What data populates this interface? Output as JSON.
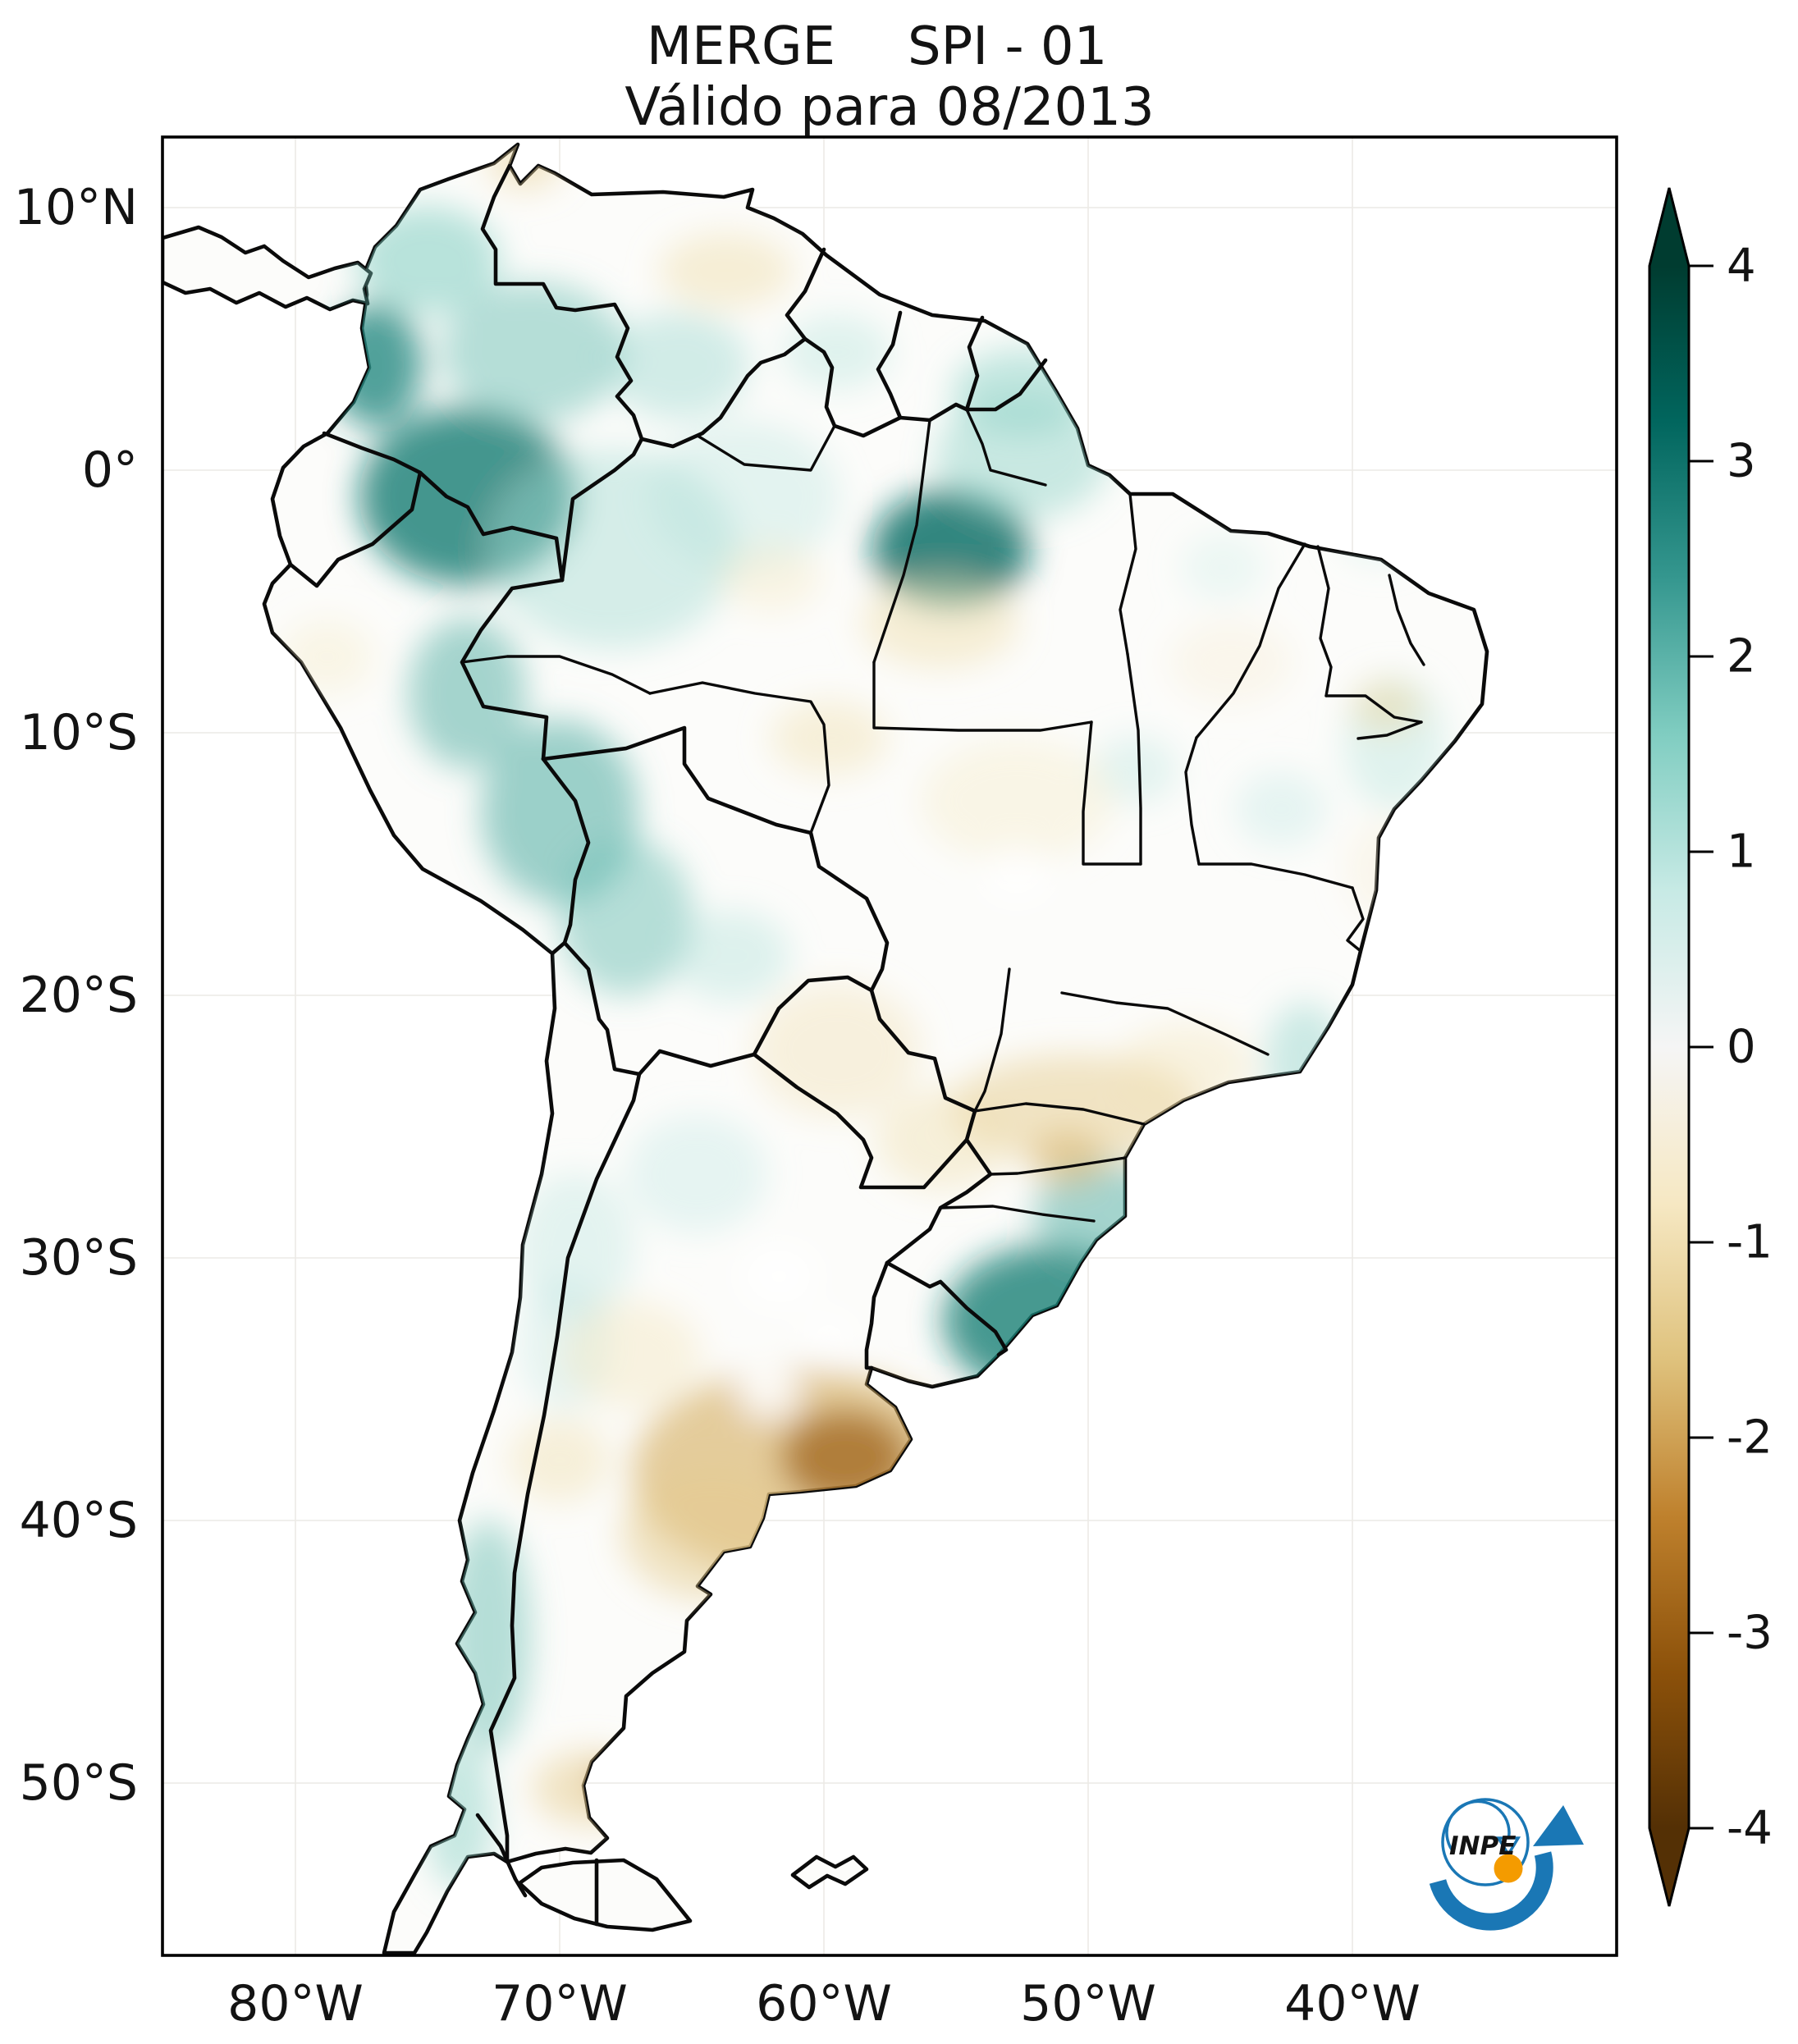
{
  "figure": {
    "title_left": "MERGE",
    "title_right": "SPI - 01",
    "subtitle": "Válido para 08/2013"
  },
  "map": {
    "lat_ticks": [
      {
        "label": "10°N",
        "lat": 10
      },
      {
        "label": "0°",
        "lat": 0
      },
      {
        "label": "10°S",
        "lat": -10
      },
      {
        "label": "20°S",
        "lat": -20
      },
      {
        "label": "30°S",
        "lat": -30
      },
      {
        "label": "40°S",
        "lat": -40
      },
      {
        "label": "50°S",
        "lat": -50
      }
    ],
    "lon_ticks": [
      {
        "label": "80°W",
        "lon": -80
      },
      {
        "label": "70°W",
        "lon": -70
      },
      {
        "label": "60°W",
        "lon": -60
      },
      {
        "label": "50°W",
        "lon": -50
      },
      {
        "label": "40°W",
        "lon": -40
      }
    ]
  },
  "colorbar": {
    "min": -4,
    "max": 4,
    "tick_values": [
      4,
      3,
      2,
      1,
      0,
      -1,
      -2,
      -3,
      -4
    ],
    "extend": "both",
    "colormap_name": "BrBG",
    "stops": [
      "#543005",
      "#8c510a",
      "#bf812d",
      "#dfc27d",
      "#f6e8c3",
      "#f5f5f5",
      "#c7eae5",
      "#80cdc1",
      "#35978f",
      "#01665e",
      "#003c30"
    ]
  },
  "logo": {
    "text": "INPE",
    "blue": "#1a77b5",
    "orange": "#f49b00"
  },
  "chart_data": {
    "type": "heatmap",
    "title": "MERGE SPI - 01",
    "subtitle": "Válido para 08/2013",
    "variable": "SPI-01 (Standardized Precipitation Index, 1-month) from MERGE precipitation",
    "valid_for": "08/2013",
    "region": "South America",
    "extent": {
      "lon_min": -85,
      "lon_max": -30,
      "lat_min": -56.6,
      "lat_max": 12.7
    },
    "x_axis": {
      "label": "longitude",
      "tick_labels": [
        "80°W",
        "70°W",
        "60°W",
        "50°W",
        "40°W"
      ]
    },
    "y_axis": {
      "label": "latitude",
      "tick_labels": [
        "10°N",
        "0°",
        "10°S",
        "20°S",
        "30°S",
        "40°S",
        "50°S"
      ]
    },
    "colorbar": {
      "range": [
        -4,
        4
      ],
      "tick_step": 1,
      "extend": "both",
      "colormap": "BrBG: brown = dry (negative SPI), white = neutral, teal-green = wet (positive SPI)"
    },
    "grid": false,
    "legend_position": "right-colorbar",
    "anomalies": [
      {
        "region": "Pacific Colombia (Chocó)",
        "spi": 2.5
      },
      {
        "region": "S Colombia / E Ecuador / N Peru (NW Amazon)",
        "spi": 3.0
      },
      {
        "region": "Central Pará, Brazil",
        "spi": 3.0
      },
      {
        "region": "Amapá / Guianas coast",
        "spi": 1.5
      },
      {
        "region": "SE Peru / W Bolivia (Madre de Dios - La Paz)",
        "spi": 2.0
      },
      {
        "region": "Rio Grande do Sul / Santa Catarina, S Brazil",
        "spi": 2.5
      },
      {
        "region": "Rio de Janeiro / Espírito Santo coast",
        "spi": 1.0
      },
      {
        "region": "S Chile Andes (43-48°S)",
        "spi": 1.5
      },
      {
        "region": "NW Argentina Andes",
        "spi": 1.0
      },
      {
        "region": "NE Brazil coast (Pernambuco-Alagoas)",
        "spi": 1.0
      },
      {
        "region": "N Venezuela (Guajira / Falcón)",
        "spi": -1.0
      },
      {
        "region": "S Pará / N Mato Grosso",
        "spi": -1.0
      },
      {
        "region": "São Paulo / Paraná interior",
        "spi": -1.5
      },
      {
        "region": "Pampas: Buenos Aires / La Pampa, Argentina",
        "spi": -2.5
      },
      {
        "region": "C Argentina core (~37°S 60°W)",
        "spi": -3.0
      },
      {
        "region": "Gran Chaco (Bolivia / Paraguay)",
        "spi": -1.0
      },
      {
        "region": "S Patagonia (Santa Cruz)",
        "spi": -1.5
      },
      {
        "region": "Interior NE Brazil / C Brazil plateau",
        "spi": 0.0
      }
    ],
    "field_blobs": [
      {
        "lon": -77.0,
        "lat": 4.0,
        "rx": 58,
        "ry": 75,
        "spi": 2.6,
        "op": 0.8
      },
      {
        "lon": -75.0,
        "lat": 8.0,
        "rx": 88,
        "ry": 66,
        "spi": 1.6,
        "op": 0.55
      },
      {
        "lon": -73.5,
        "lat": -1.0,
        "rx": 132,
        "ry": 108,
        "spi": 2.9,
        "op": 0.78
      },
      {
        "lon": -71.0,
        "lat": 4.5,
        "rx": 112,
        "ry": 86,
        "spi": 1.8,
        "op": 0.5
      },
      {
        "lon": -68.0,
        "lat": -3.0,
        "rx": 152,
        "ry": 122,
        "spi": 1.2,
        "op": 0.45
      },
      {
        "lon": -65.5,
        "lat": 4.0,
        "rx": 86,
        "ry": 66,
        "spi": 1.4,
        "op": 0.4
      },
      {
        "lon": -59.5,
        "lat": 4.5,
        "rx": 66,
        "ry": 46,
        "spi": 1.0,
        "op": 0.4
      },
      {
        "lon": -52.5,
        "lat": 3.0,
        "rx": 86,
        "ry": 52,
        "spi": 1.5,
        "op": 0.5
      },
      {
        "lon": -55.2,
        "lat": -3.0,
        "rx": 96,
        "ry": 72,
        "spi": 3.0,
        "op": 0.85
      },
      {
        "lon": -52.5,
        "lat": 0.5,
        "rx": 106,
        "ry": 76,
        "spi": 1.5,
        "op": 0.45
      },
      {
        "lon": -63.0,
        "lat": -1.0,
        "rx": 116,
        "ry": 92,
        "spi": 1.0,
        "op": 0.35
      },
      {
        "lon": -73.5,
        "lat": -8.5,
        "rx": 72,
        "ry": 92,
        "spi": 2.0,
        "op": 0.55
      },
      {
        "lon": -70.0,
        "lat": -13.0,
        "rx": 96,
        "ry": 112,
        "spi": 2.0,
        "op": 0.6
      },
      {
        "lon": -67.5,
        "lat": -17.0,
        "rx": 82,
        "ry": 96,
        "spi": 1.8,
        "op": 0.5
      },
      {
        "lon": -63.5,
        "lat": -18.5,
        "rx": 72,
        "ry": 56,
        "spi": 1.2,
        "op": 0.35
      },
      {
        "lon": -51.4,
        "lat": -32.4,
        "rx": 132,
        "ry": 92,
        "spi": 2.8,
        "op": 0.8
      },
      {
        "lon": -49.4,
        "lat": -28.3,
        "rx": 86,
        "ry": 62,
        "spi": 2.0,
        "op": 0.55
      },
      {
        "lon": -41.8,
        "lat": -22.5,
        "rx": 48,
        "ry": 72,
        "spi": 1.3,
        "op": 0.5
      },
      {
        "lon": -38.4,
        "lat": -10.4,
        "rx": 62,
        "ry": 82,
        "spi": 1.0,
        "op": 0.4
      },
      {
        "lon": -42.7,
        "lat": -12.9,
        "rx": 56,
        "ry": 46,
        "spi": 0.9,
        "op": 0.35
      },
      {
        "lon": -48.2,
        "lat": -11.4,
        "rx": 52,
        "ry": 42,
        "spi": 1.0,
        "op": 0.35
      },
      {
        "lon": -44.9,
        "lat": -3.7,
        "rx": 52,
        "ry": 42,
        "spi": 0.8,
        "op": 0.3
      },
      {
        "lon": -38.9,
        "lat": -2.3,
        "rx": 56,
        "ry": 40,
        "spi": 0.8,
        "op": 0.35
      },
      {
        "lon": -72.7,
        "lat": -44.4,
        "rx": 52,
        "ry": 142,
        "spi": 1.8,
        "op": 0.5
      },
      {
        "lon": -73.8,
        "lat": -51.2,
        "rx": 42,
        "ry": 92,
        "spi": 1.4,
        "op": 0.5
      },
      {
        "lon": -69.4,
        "lat": -29.6,
        "rx": 72,
        "ry": 92,
        "spi": 1.0,
        "op": 0.35
      },
      {
        "lon": -69.8,
        "lat": -33.3,
        "rx": 56,
        "ry": 82,
        "spi": 0.9,
        "op": 0.35
      },
      {
        "lon": -64.8,
        "lat": -26.8,
        "rx": 86,
        "ry": 72,
        "spi": 0.9,
        "op": 0.35
      },
      {
        "lon": -71.3,
        "lat": 11.8,
        "rx": 46,
        "ry": 36,
        "spi": -1.2,
        "op": 0.55
      },
      {
        "lon": -63.7,
        "lat": 7.6,
        "rx": 82,
        "ry": 46,
        "spi": -1.0,
        "op": 0.5
      },
      {
        "lon": -55.6,
        "lat": -5.8,
        "rx": 96,
        "ry": 56,
        "spi": -1.0,
        "op": 0.5
      },
      {
        "lon": -62.0,
        "lat": -4.1,
        "rx": 62,
        "ry": 42,
        "spi": -0.8,
        "op": 0.4
      },
      {
        "lon": -59.8,
        "lat": -10.2,
        "rx": 72,
        "ry": 46,
        "spi": -1.0,
        "op": 0.45
      },
      {
        "lon": -52.7,
        "lat": -12.6,
        "rx": 118,
        "ry": 76,
        "spi": -0.7,
        "op": 0.4
      },
      {
        "lon": -59.5,
        "lat": -22.1,
        "rx": 102,
        "ry": 82,
        "spi": -1.0,
        "op": 0.4
      },
      {
        "lon": -50.5,
        "lat": -24.3,
        "rx": 152,
        "ry": 66,
        "spi": -1.3,
        "op": 0.55
      },
      {
        "lon": -50.8,
        "lat": -26.2,
        "rx": 46,
        "ry": 32,
        "spi": -1.8,
        "op": 0.55
      },
      {
        "lon": -46.3,
        "lat": -22.7,
        "rx": 82,
        "ry": 52,
        "spi": -0.9,
        "op": 0.4
      },
      {
        "lon": -55.5,
        "lat": -25.5,
        "rx": 82,
        "ry": 62,
        "spi": -1.0,
        "op": 0.45
      },
      {
        "lon": -60.9,
        "lat": -38.2,
        "rx": 205,
        "ry": 128,
        "spi": -1.8,
        "op": 0.65
      },
      {
        "lon": -59.2,
        "lat": -37.6,
        "rx": 78,
        "ry": 58,
        "spi": -3.0,
        "op": 0.7
      },
      {
        "lon": -64.2,
        "lat": -40.5,
        "rx": 112,
        "ry": 82,
        "spi": -1.4,
        "op": 0.5
      },
      {
        "lon": -67.3,
        "lat": -33.7,
        "rx": 86,
        "ry": 66,
        "spi": -0.9,
        "op": 0.4
      },
      {
        "lon": -70.0,
        "lat": -37.7,
        "rx": 62,
        "ry": 52,
        "spi": -1.0,
        "op": 0.45
      },
      {
        "lon": -68.8,
        "lat": -50.2,
        "rx": 72,
        "ry": 46,
        "spi": -1.3,
        "op": 0.55
      },
      {
        "lon": -68.0,
        "lat": -50.0,
        "rx": 26,
        "ry": 19,
        "spi": -2.5,
        "op": 0.6
      },
      {
        "lon": -78.8,
        "lat": -7.1,
        "rx": 56,
        "ry": 46,
        "spi": -0.7,
        "op": 0.4
      },
      {
        "lon": -44.6,
        "lat": -7.3,
        "rx": 76,
        "ry": 52,
        "spi": -0.6,
        "op": 0.35
      },
      {
        "lon": -38.7,
        "lat": -15.2,
        "rx": 50,
        "ry": 62,
        "spi": -0.6,
        "op": 0.35
      },
      {
        "lon": -38.7,
        "lat": -9.0,
        "rx": 42,
        "ry": 32,
        "spi": -1.2,
        "op": 0.5
      },
      {
        "lon": -61.7,
        "lat": -30.7,
        "rx": 46,
        "ry": 36,
        "spi": 0,
        "op": 0.95,
        "no_data": true
      },
      {
        "lon": -62.1,
        "lat": -35.1,
        "rx": 36,
        "ry": 29,
        "spi": 0,
        "op": 0.9,
        "no_data": true
      },
      {
        "lon": -59.8,
        "lat": -33.0,
        "rx": 31,
        "ry": 25,
        "spi": 0,
        "op": 0.9,
        "no_data": true
      },
      {
        "lon": -52.7,
        "lat": -15.4,
        "rx": 41,
        "ry": 31,
        "spi": 0,
        "op": 0.85,
        "no_data": true
      }
    ]
  }
}
